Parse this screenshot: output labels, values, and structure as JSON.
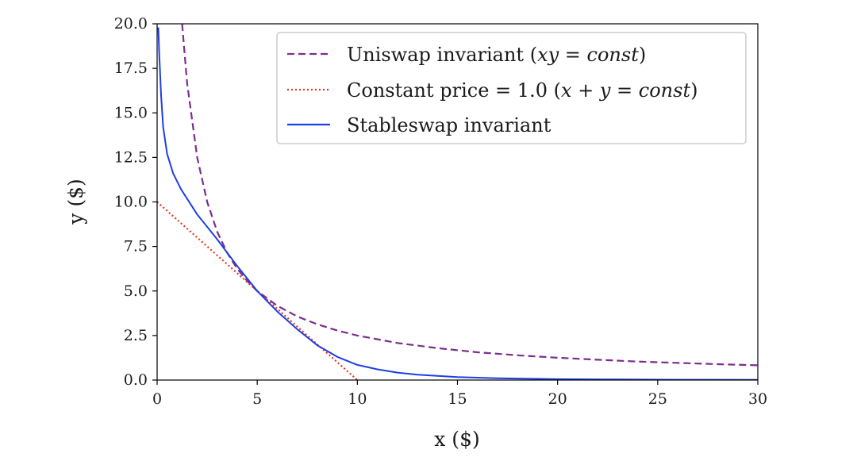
{
  "chart_data": {
    "type": "line",
    "title": "",
    "xlabel": "x ($)",
    "ylabel": "y ($)",
    "xlim": [
      0,
      30
    ],
    "ylim": [
      0,
      20
    ],
    "x_ticks": [
      "0",
      "5",
      "10",
      "15",
      "20",
      "25",
      "30"
    ],
    "y_ticks": [
      "0.0",
      "2.5",
      "5.0",
      "7.5",
      "10.0",
      "12.5",
      "15.0",
      "17.5",
      "20.0"
    ],
    "grid": false,
    "legend_position": "top-right",
    "series": [
      {
        "name": "Uniswap invariant (xy = const)",
        "legend_main": "Uniswap invariant (",
        "legend_math": "xy = const",
        "legend_end": ")",
        "color": "#7b2d8e",
        "style": "dashed",
        "points": [
          [
            1.25,
            20
          ],
          [
            1.5,
            16.67
          ],
          [
            2,
            12.5
          ],
          [
            2.5,
            10
          ],
          [
            3,
            8.33
          ],
          [
            3.5,
            7.14
          ],
          [
            4,
            6.25
          ],
          [
            4.5,
            5.56
          ],
          [
            5,
            5
          ],
          [
            6,
            4.17
          ],
          [
            7,
            3.57
          ],
          [
            8,
            3.13
          ],
          [
            9,
            2.78
          ],
          [
            10,
            2.5
          ],
          [
            12,
            2.08
          ],
          [
            14,
            1.79
          ],
          [
            16,
            1.56
          ],
          [
            18,
            1.39
          ],
          [
            20,
            1.25
          ],
          [
            22,
            1.14
          ],
          [
            24,
            1.04
          ],
          [
            26,
            0.96
          ],
          [
            28,
            0.89
          ],
          [
            30,
            0.83
          ]
        ]
      },
      {
        "name": "Constant price = 1.0 (x + y = const)",
        "legend_main": "Constant price = 1.0 (",
        "legend_math": "x + y = const",
        "legend_end": ")",
        "color": "#e8351e",
        "style": "dotted",
        "points": [
          [
            0,
            10
          ],
          [
            10,
            0
          ]
        ]
      },
      {
        "name": "Stableswap invariant",
        "legend_main": "Stableswap invariant",
        "legend_math": "",
        "legend_end": "",
        "color": "#1f3fe0",
        "style": "solid",
        "points": [
          [
            0.06,
            19.8
          ],
          [
            0.1,
            18.5
          ],
          [
            0.2,
            16
          ],
          [
            0.3,
            14.2
          ],
          [
            0.5,
            12.7
          ],
          [
            0.8,
            11.6
          ],
          [
            1.2,
            10.7
          ],
          [
            2,
            9.3
          ],
          [
            3,
            7.9
          ],
          [
            4,
            6.4
          ],
          [
            5,
            5
          ],
          [
            6,
            3.85
          ],
          [
            7,
            2.85
          ],
          [
            8,
            1.95
          ],
          [
            9,
            1.3
          ],
          [
            10,
            0.85
          ],
          [
            11,
            0.6
          ],
          [
            12,
            0.42
          ],
          [
            13,
            0.3
          ],
          [
            15,
            0.17
          ],
          [
            17,
            0.1
          ],
          [
            20,
            0.05
          ],
          [
            23,
            0.03
          ],
          [
            26,
            0.02
          ],
          [
            30,
            0.01
          ]
        ]
      }
    ]
  }
}
